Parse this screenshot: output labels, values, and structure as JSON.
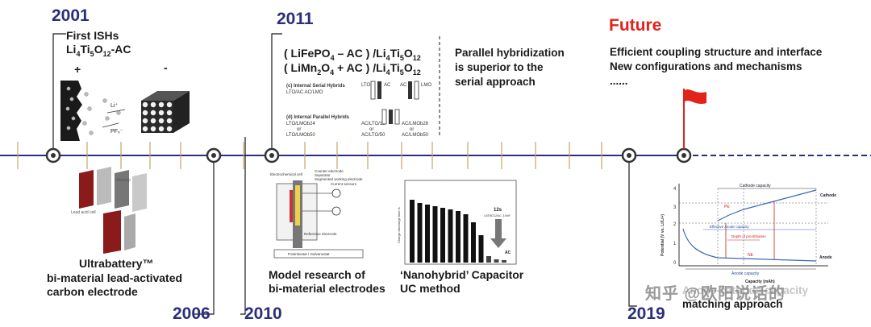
{
  "years": {
    "y2001": "2001",
    "y2006": "2006",
    "y2010": "2010",
    "y2011": "2011",
    "y2019": "2019",
    "future": "Future"
  },
  "first_ishs": {
    "line1": "First ISHs",
    "formula": "Li4Ti5O12-AC",
    "plus": "+",
    "minus": "-",
    "li_plus": "Li+",
    "pf6": "PF6-"
  },
  "ultrabattery": {
    "line1": "Ultrabattery™",
    "line2": "bi-material lead-activated",
    "line3": "carbon electrode"
  },
  "formulas_2011": {
    "line1": "( LiFePO4 – AC ) /Li4Ti5O12",
    "line2": "( LiMn2O4 + AC ) /Li4Ti5O12",
    "serial_title": "(c) Internal Serial Hybrids",
    "serial_sub": "LTO/AC  AC/LMO",
    "serial_lto": "LTO",
    "serial_ac": "AC",
    "serial_lmo": "LMO",
    "parallel_title": "(d) Internal Parallel Hybrids",
    "parallel_left": [
      "LTO/LMOb24",
      "or",
      "LTO/LMOb50"
    ],
    "parallel_mid": [
      "AC/LTO/19",
      "or",
      "AC/LTO/50"
    ],
    "parallel_right": [
      "AC/LMOb28",
      "or",
      "AC/LMOb50"
    ]
  },
  "parallel_note": {
    "line1": "Parallel hybridization",
    "line2": "is superior to the",
    "line3": "serial approach"
  },
  "future_text": {
    "line1": "Efficient coupling structure and interface",
    "line2": "New configurations and mechanisms",
    "line3": "......"
  },
  "model": {
    "line1": "Model research of",
    "line2": "bi-material electrodes",
    "labels": [
      "Electrochemical cell",
      "Counter electrode",
      "Separator",
      "Segmented working electrode",
      "Current sensors",
      "Reference electrode",
      "Potentiostat / Galvanostat"
    ]
  },
  "nanohybrid": {
    "line1": "‘Nanohybrid’ Capacitor",
    "line2": "UC method",
    "ylabel": "Charge-discharge time /s",
    "tag": "12s",
    "tag_sub": "Li4Ti5O12/AC ,10mF",
    "ac_label": "AC"
  },
  "matching": {
    "line1": "Anode-cathode capacity",
    "line2": "matching approach",
    "ylabel": "Potential (V vs. Li/Li+)",
    "xlabel": "Capacity (mAh)",
    "cathode_capacity": "Cathode capacity",
    "effective_anode": "Effective anode capacity",
    "depth": "Depth of pre-lithiation",
    "anode_capacity": "Anode capacity",
    "cathode": "Cathode",
    "anode": "Anode",
    "yticks": [
      "4",
      "3",
      "2",
      "1",
      "0"
    ],
    "pe": "PE",
    "ne": "NE"
  },
  "watermark": "知乎 @欧阳说话的",
  "colors": {
    "timeline": "#2b2e7a",
    "tick": "#c8a46a",
    "red": "#e2231a",
    "dark": "#1a1a1a"
  }
}
